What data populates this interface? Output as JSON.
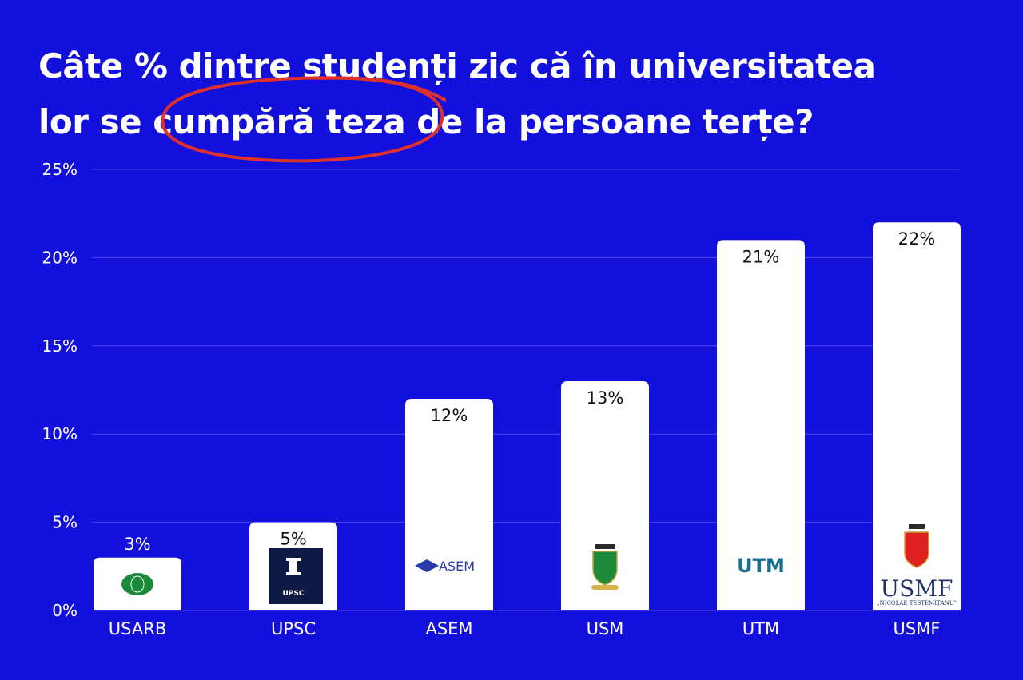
{
  "title_lines": [
    "Câte % dintre studenți zic că în universitatea",
    "lor se cumpără teza de la persoane terțe?"
  ],
  "highlight": {
    "text": "cumpără teza",
    "color": "#e0302a"
  },
  "colors": {
    "background": "#1410dc",
    "bar": "#ffffff",
    "text": "#ffffff",
    "grid": "#4a48ee"
  },
  "chart_data": {
    "type": "bar",
    "title": "Câte % dintre studenți zic că în universitatea lor se cumpără teza de la persoane terțe?",
    "categories": [
      "USARB",
      "UPSC",
      "ASEM",
      "USM",
      "UTM",
      "USMF"
    ],
    "values": [
      3,
      5,
      12,
      13,
      21,
      22
    ],
    "data_labels": [
      "3%",
      "5%",
      "12%",
      "13%",
      "21%",
      "22%"
    ],
    "logos": [
      "usarb-logo",
      "upsc-logo",
      "asem-logo",
      "usm-logo",
      "utm-logo",
      "usmf-logo"
    ],
    "logo_text": {
      "upsc": "UPSC",
      "asem": "ASEM",
      "utm": "UTM",
      "usmf": "USMF",
      "usmf_sub": "„NICOLAE TESTEMIȚANU\""
    },
    "ylim": [
      0,
      25
    ],
    "yticks": [
      0,
      5,
      10,
      15,
      20,
      25
    ],
    "ytick_labels": [
      "0%",
      "5%",
      "10%",
      "15%",
      "20%",
      "25%"
    ],
    "xlabel": "",
    "ylabel": "",
    "grid": true,
    "legend": "none"
  }
}
